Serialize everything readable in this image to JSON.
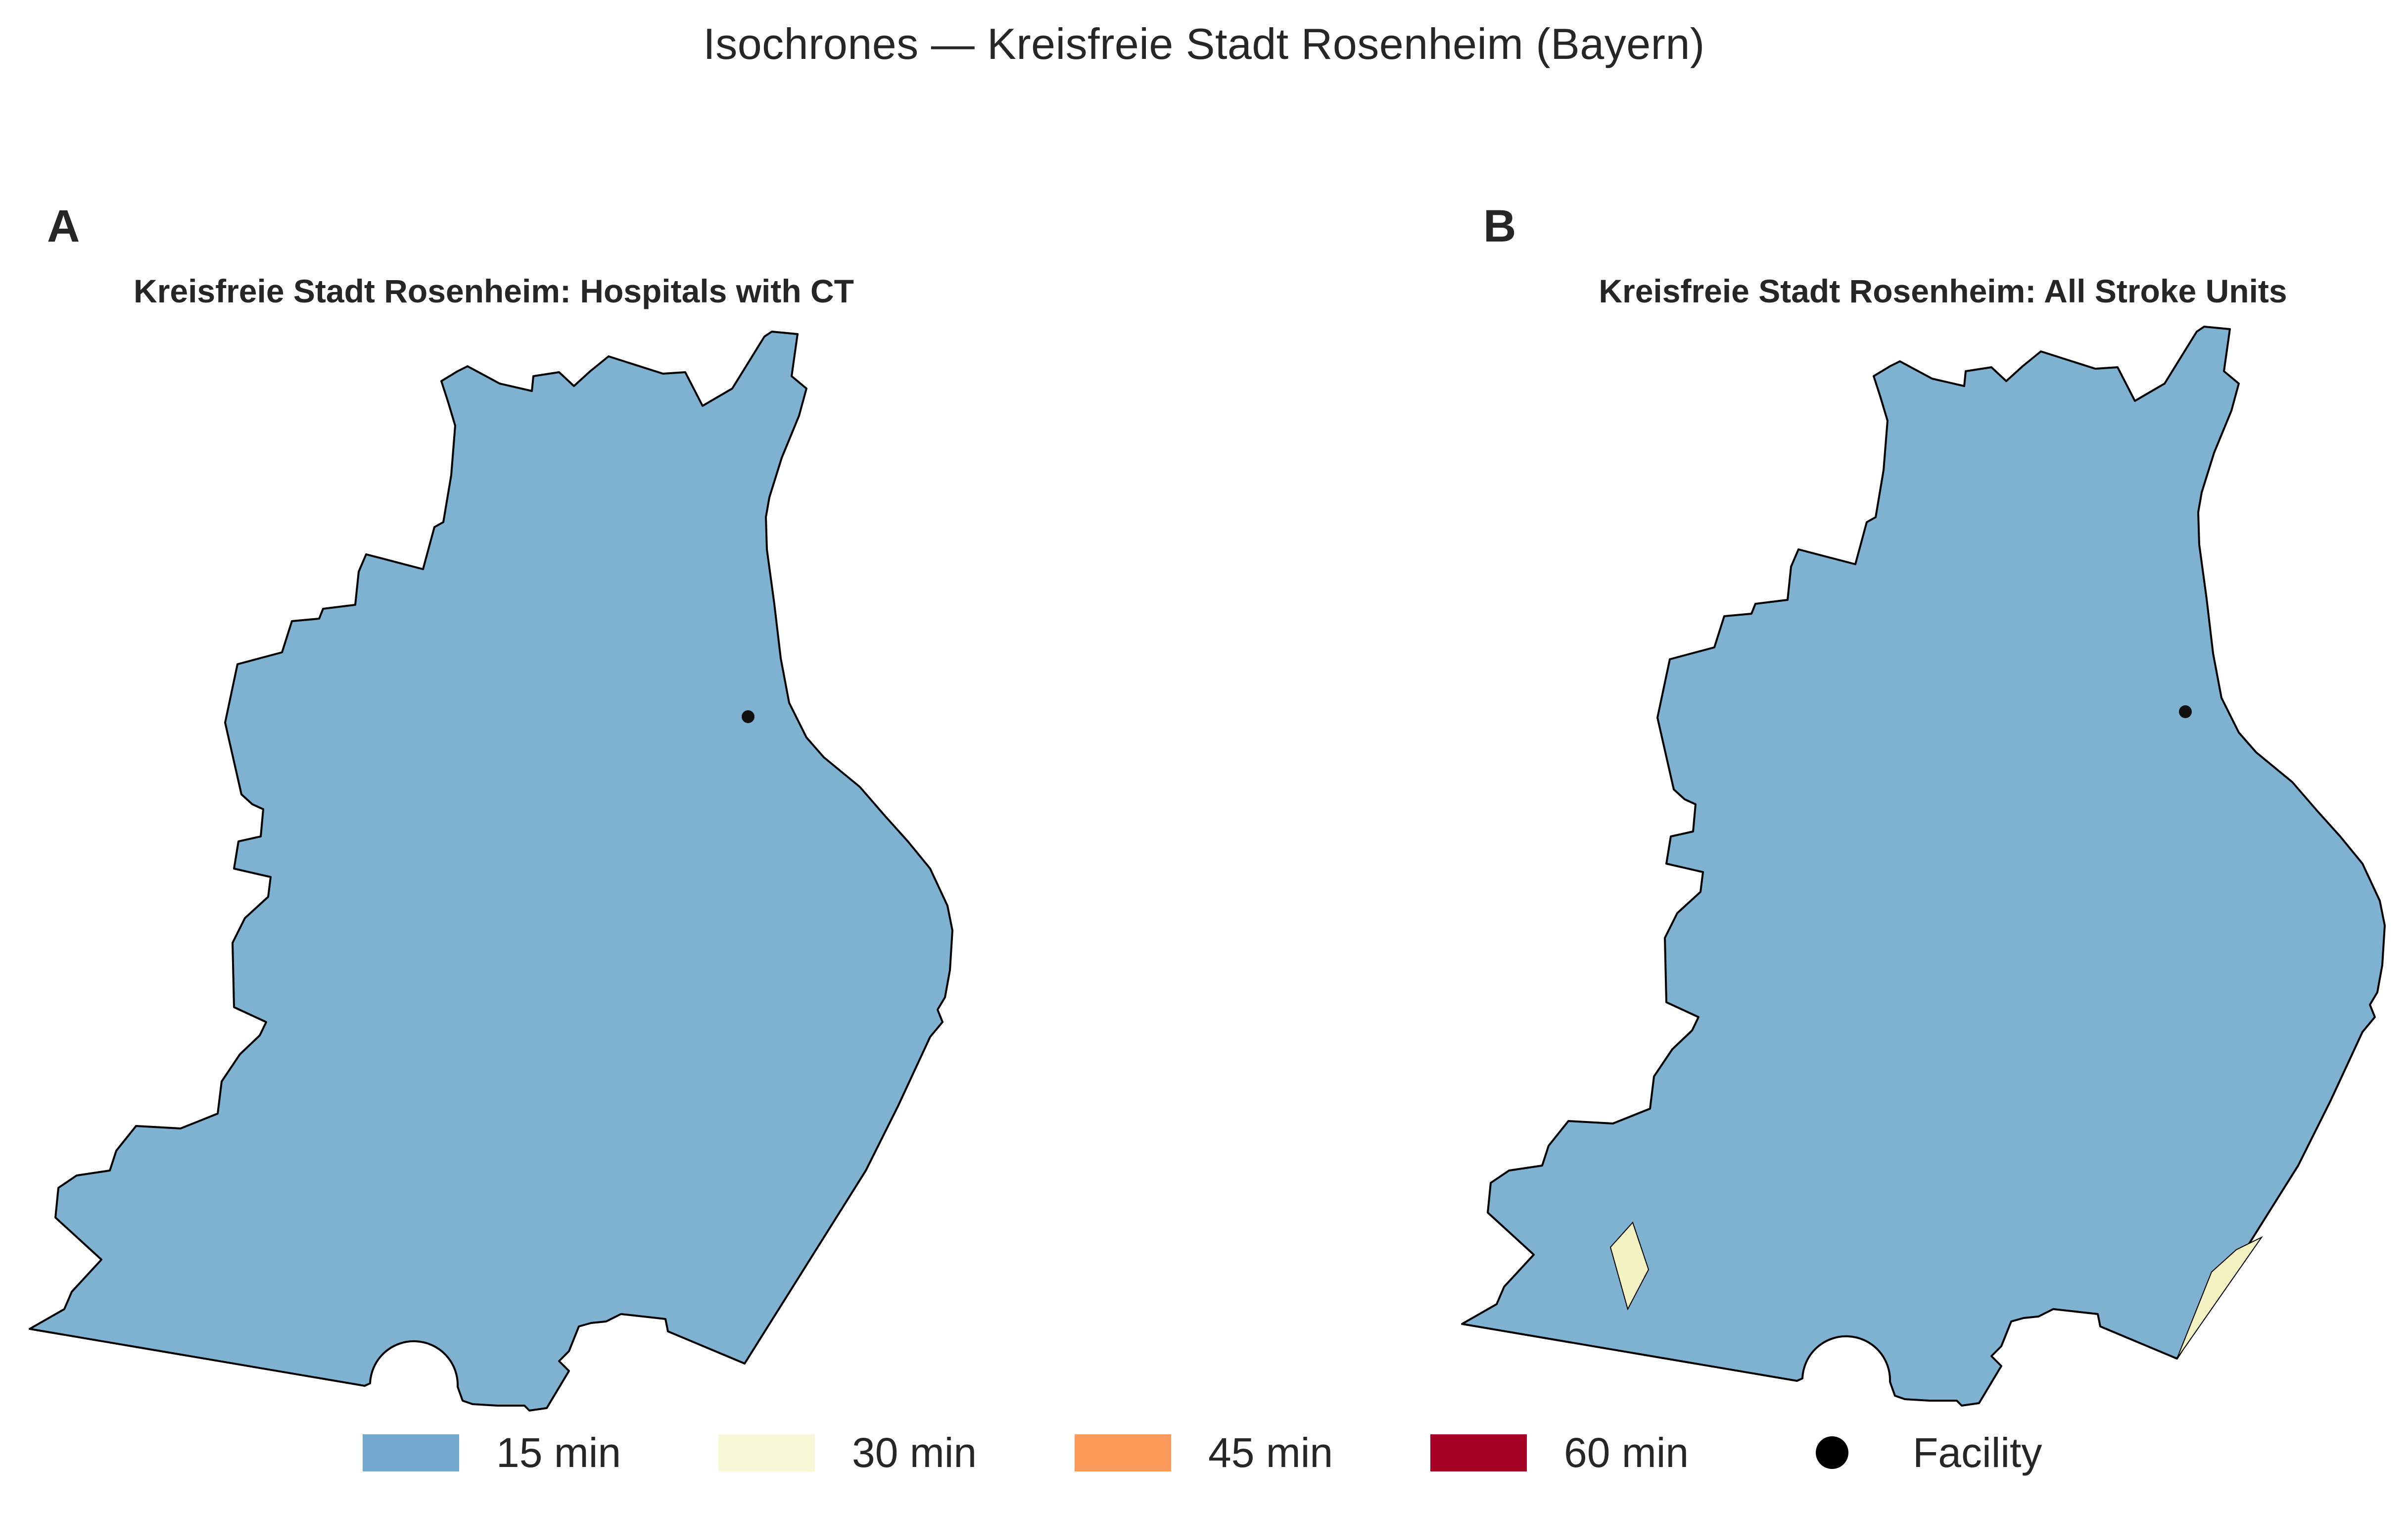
{
  "title": "Isochrones — Kreisfreie Stadt Rosenheim (Bayern)",
  "panels": [
    {
      "letter": "A",
      "title": "Kreisfreie Stadt Rosenheim: Hospitals with CT",
      "isochrone_areas": [
        "15 min"
      ],
      "facilities": 1
    },
    {
      "letter": "B",
      "title": "Kreisfreie Stadt Rosenheim: All Stroke Units",
      "isochrone_areas": [
        "15 min",
        "30 min"
      ],
      "facilities": 1
    }
  ],
  "legend": [
    {
      "label": "15 min",
      "color": "#7fb1d0",
      "symbol": "patch"
    },
    {
      "label": "30 min",
      "color": "#f7f7d0",
      "symbol": "patch"
    },
    {
      "label": "45 min",
      "color": "#fc9a5c",
      "symbol": "patch"
    },
    {
      "label": "60 min",
      "color": "#a50026",
      "symbol": "patch"
    },
    {
      "label": "Facility",
      "color": "#000000",
      "symbol": "dot"
    }
  ],
  "colors": {
    "fill_15": "#7fb1d0",
    "fill_30": "#f5f2c4",
    "outline": "#000000",
    "facility": "#111111"
  }
}
